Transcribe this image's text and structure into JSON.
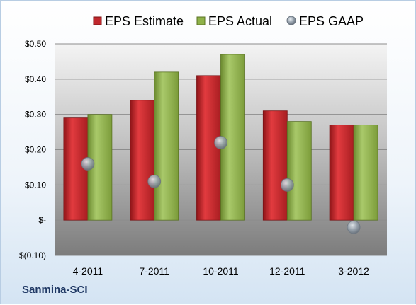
{
  "company": "Sanmina-SCI",
  "colors": {
    "estimate": "#c0282d",
    "actual": "#8fb249",
    "gaap": "#9aa5b0"
  },
  "chart_data": {
    "type": "bar",
    "categories": [
      "4-2011",
      "7-2011",
      "10-2011",
      "12-2011",
      "3-2012"
    ],
    "series": [
      {
        "name": "EPS Estimate",
        "kind": "bar",
        "values": [
          0.29,
          0.34,
          0.41,
          0.31,
          0.27
        ]
      },
      {
        "name": "EPS Actual",
        "kind": "bar",
        "values": [
          0.3,
          0.42,
          0.47,
          0.28,
          0.27
        ]
      },
      {
        "name": "EPS GAAP",
        "kind": "marker",
        "values": [
          0.16,
          0.11,
          0.22,
          0.1,
          -0.02
        ]
      }
    ],
    "yticks": [
      -0.1,
      0.0,
      0.1,
      0.2,
      0.3,
      0.4,
      0.5
    ],
    "ytick_labels": [
      "$(0.10)",
      "$-",
      "$0.10",
      "$0.20",
      "$0.30",
      "$0.40",
      "$0.50"
    ],
    "ylim": [
      -0.1,
      0.5
    ],
    "grid": true,
    "legend": "top"
  }
}
